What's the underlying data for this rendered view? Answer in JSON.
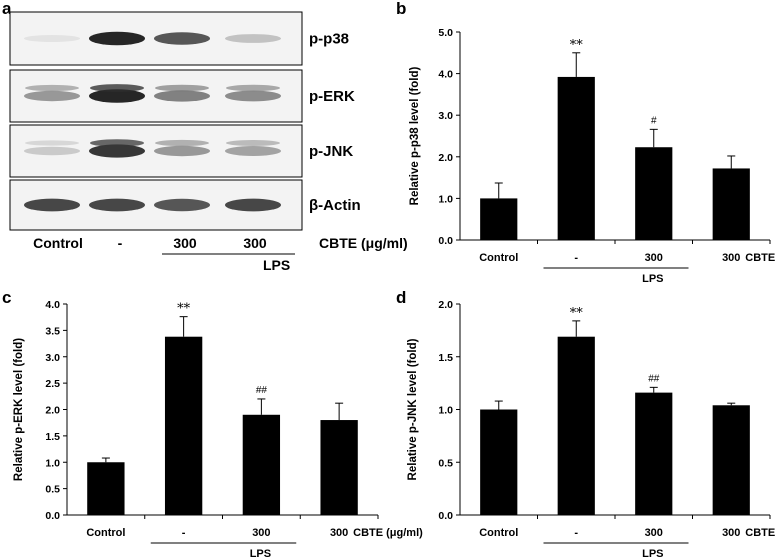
{
  "panel_a": {
    "letter": "a",
    "blots": [
      {
        "label": "p-p38",
        "intensities": [
          0.12,
          0.95,
          0.8,
          0.35
        ]
      },
      {
        "label": "p-ERK",
        "intensities": [
          0.55,
          0.95,
          0.65,
          0.6
        ]
      },
      {
        "label": "p-JNK",
        "intensities": [
          0.3,
          0.9,
          0.55,
          0.5
        ]
      },
      {
        "label": "β-Actin",
        "intensities": [
          0.85,
          0.85,
          0.8,
          0.85
        ]
      }
    ],
    "lanes": [
      "Control",
      "-",
      "300",
      "300"
    ],
    "unit_label": "CBTE (μg/ml)",
    "lps_label": "LPS"
  },
  "chart_data": [
    {
      "panel": "b",
      "type": "bar",
      "categories": [
        "Control",
        "-",
        "300",
        "300"
      ],
      "values": [
        1.0,
        3.92,
        2.23,
        1.72
      ],
      "errors": [
        0.37,
        0.58,
        0.43,
        0.3
      ],
      "annotations": [
        "",
        "**",
        "#",
        ""
      ],
      "ylabel": "Relative p-p38 level (fold)",
      "ylim": [
        0,
        5
      ],
      "ytick_step": 1,
      "unit_label": "CBTE (μg/ml)",
      "lps_label": "LPS"
    },
    {
      "panel": "c",
      "type": "bar",
      "categories": [
        "Control",
        "-",
        "300",
        "300"
      ],
      "values": [
        1.0,
        3.38,
        1.9,
        1.8
      ],
      "errors": [
        0.08,
        0.38,
        0.3,
        0.32
      ],
      "annotations": [
        "",
        "**",
        "##",
        ""
      ],
      "ylabel": "Relative p-ERK level (fold)",
      "ylim": [
        0,
        4
      ],
      "ytick_step": 0.5,
      "unit_label": "CBTE (μg/ml)",
      "lps_label": "LPS"
    },
    {
      "panel": "d",
      "type": "bar",
      "categories": [
        "Control",
        "-",
        "300",
        "300"
      ],
      "values": [
        1.0,
        1.69,
        1.16,
        1.04
      ],
      "errors": [
        0.08,
        0.15,
        0.05,
        0.02
      ],
      "annotations": [
        "",
        "**",
        "##",
        ""
      ],
      "ylabel": "Relative p-JNK level (fold)",
      "ylim": [
        0,
        2
      ],
      "ytick_step": 0.5,
      "unit_label": "CBTE (μg/ml)",
      "lps_label": "LPS"
    }
  ]
}
